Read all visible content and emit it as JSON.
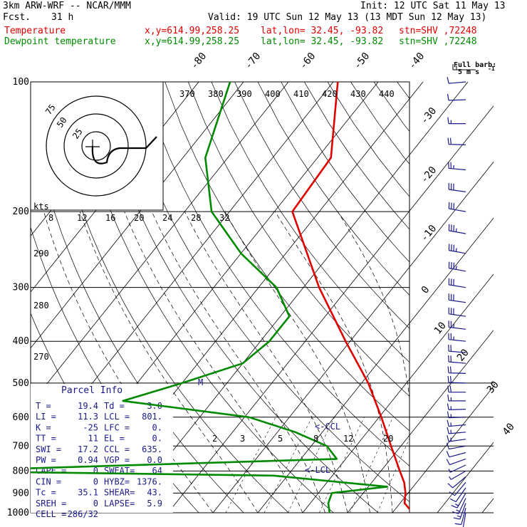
{
  "header": {
    "model": "3km ARW-WRF -- NCAR/MMM",
    "init": "Init: 12 UTC Sat 11 May 13",
    "fcst_label": "Fcst.",
    "fcst_value": "31 h",
    "valid": "Valid: 19 UTC Sun 12 May 13 (13 MDT Sun 12 May 13)",
    "temp_label": "Temperature",
    "dew_label": "Dewpoint temperature",
    "xy": "x,y=614.99,258.25",
    "latlon": "lat,lon= 32.45, -93.82",
    "stn": "stn=SHV ,72248",
    "barb_title": "Full barb:",
    "barb_unit": "5 m s",
    "barb_exp": "-1"
  },
  "colors": {
    "temperature": "#e00000",
    "dewpoint": "#008a00",
    "isotherm": "#000000",
    "barbs": "#1a1a8c"
  },
  "chart_data": {
    "type": "line",
    "chart_kind": "skew-T log-p sounding",
    "pressure_levels": [
      100,
      200,
      300,
      400,
      500,
      600,
      700,
      800,
      900,
      1000
    ],
    "isotherm_labels": [
      "-80",
      "-70",
      "-60",
      "-50",
      "-40",
      "-30",
      "-20",
      "-10",
      "0",
      "10",
      "20",
      "30",
      "40"
    ],
    "theta_labels": [
      "370",
      "380",
      "390",
      "400",
      "410",
      "420",
      "430",
      "440"
    ],
    "theta_side_labels": [
      "290",
      "280",
      "270"
    ],
    "hodo_speed_labels": [
      "8",
      "12",
      "16",
      "20",
      "24",
      "28",
      "32"
    ],
    "hodo_ring_labels": [
      "75",
      "50",
      "25"
    ],
    "hodo_unit": "kts",
    "mixing_labels": [
      "2",
      "3",
      "5",
      "8",
      "12",
      "20"
    ],
    "lcl_label": "<-LCL",
    "ccl_label": "<-CCL",
    "m_label": "M",
    "series": [
      {
        "name": "Temperature",
        "color": "#e00000",
        "points": [
          [
            1000,
            24.5
          ],
          [
            950,
            21
          ],
          [
            900,
            19.4
          ],
          [
            850,
            17.2
          ],
          [
            800,
            14.2
          ],
          [
            700,
            7.8
          ],
          [
            600,
            0.5
          ],
          [
            500,
            -8.5
          ],
          [
            400,
            -21
          ],
          [
            300,
            -36.5
          ],
          [
            200,
            -56
          ],
          [
            150,
            -57
          ],
          [
            100,
            -69
          ]
        ]
      },
      {
        "name": "Dewpoint temperature",
        "color": "#008a00",
        "points": [
          [
            1000,
            6
          ],
          [
            950,
            4
          ],
          [
            900,
            3
          ],
          [
            870,
            14.2
          ],
          [
            820,
            -13
          ],
          [
            800,
            -88
          ],
          [
            750,
            -2
          ],
          [
            700,
            -6.5
          ],
          [
            650,
            -16
          ],
          [
            600,
            -29
          ],
          [
            550,
            -60
          ],
          [
            500,
            -50
          ],
          [
            450,
            -40
          ],
          [
            400,
            -38
          ],
          [
            350,
            -38
          ],
          [
            300,
            -46
          ],
          [
            250,
            -60
          ],
          [
            200,
            -74
          ],
          [
            150,
            -85
          ],
          [
            100,
            -93
          ]
        ]
      }
    ],
    "winds": [
      {
        "p": 1000,
        "dir": 190,
        "spd": 12
      },
      {
        "p": 975,
        "dir": 195,
        "spd": 14
      },
      {
        "p": 950,
        "dir": 200,
        "spd": 15
      },
      {
        "p": 925,
        "dir": 205,
        "spd": 15
      },
      {
        "p": 900,
        "dir": 210,
        "spd": 15
      },
      {
        "p": 875,
        "dir": 215,
        "spd": 14
      },
      {
        "p": 850,
        "dir": 220,
        "spd": 12
      },
      {
        "p": 825,
        "dir": 230,
        "spd": 10
      },
      {
        "p": 800,
        "dir": 240,
        "spd": 8
      },
      {
        "p": 775,
        "dir": 245,
        "spd": 8
      },
      {
        "p": 750,
        "dir": 250,
        "spd": 10
      },
      {
        "p": 725,
        "dir": 255,
        "spd": 12
      },
      {
        "p": 700,
        "dir": 260,
        "spd": 14
      },
      {
        "p": 675,
        "dir": 262,
        "spd": 15
      },
      {
        "p": 650,
        "dir": 265,
        "spd": 16
      },
      {
        "p": 625,
        "dir": 265,
        "spd": 17
      },
      {
        "p": 600,
        "dir": 268,
        "spd": 18
      },
      {
        "p": 575,
        "dir": 268,
        "spd": 18
      },
      {
        "p": 550,
        "dir": 270,
        "spd": 19
      },
      {
        "p": 525,
        "dir": 270,
        "spd": 20
      },
      {
        "p": 500,
        "dir": 272,
        "spd": 21
      },
      {
        "p": 475,
        "dir": 272,
        "spd": 22
      },
      {
        "p": 450,
        "dir": 275,
        "spd": 23
      },
      {
        "p": 425,
        "dir": 275,
        "spd": 24
      },
      {
        "p": 400,
        "dir": 276,
        "spd": 26
      },
      {
        "p": 375,
        "dir": 277,
        "spd": 28
      },
      {
        "p": 350,
        "dir": 278,
        "spd": 30
      },
      {
        "p": 325,
        "dir": 278,
        "spd": 32
      },
      {
        "p": 300,
        "dir": 279,
        "spd": 34
      },
      {
        "p": 275,
        "dir": 280,
        "spd": 35
      },
      {
        "p": 250,
        "dir": 280,
        "spd": 36
      },
      {
        "p": 225,
        "dir": 280,
        "spd": 36
      },
      {
        "p": 200,
        "dir": 280,
        "spd": 34
      },
      {
        "p": 180,
        "dir": 278,
        "spd": 30
      },
      {
        "p": 160,
        "dir": 275,
        "spd": 26
      },
      {
        "p": 140,
        "dir": 272,
        "spd": 22
      },
      {
        "p": 125,
        "dir": 270,
        "spd": 18
      },
      {
        "p": 110,
        "dir": 268,
        "spd": 14
      },
      {
        "p": 100,
        "dir": 265,
        "spd": 10
      }
    ],
    "parcel_info": {
      "title": "Parcel Info",
      "rows": [
        [
          "T  =",
          "19.4",
          "Td =",
          "3.0"
        ],
        [
          "LI =",
          "11.3",
          "LCL =",
          "801."
        ],
        [
          "K  =",
          "-25",
          "LFC =",
          "0."
        ],
        [
          "TT =",
          "11",
          "EL  =",
          "0."
        ],
        [
          "SWI =",
          "17.2",
          "CCL =",
          "635."
        ],
        [
          "PW =",
          "0.94",
          "VGP =",
          "0.0"
        ],
        [
          "CAPE =",
          "0",
          "SWEAT=",
          "64"
        ],
        [
          "CIN =",
          "0",
          "HYBZ=",
          "1376."
        ],
        [
          "Tc =",
          "35.1",
          "SHEAR=",
          "43."
        ],
        [
          "SREH =",
          "0",
          "LAPSE=",
          "5.9"
        ],
        [
          "CELL =",
          "286/32",
          "",
          ""
        ]
      ]
    }
  }
}
